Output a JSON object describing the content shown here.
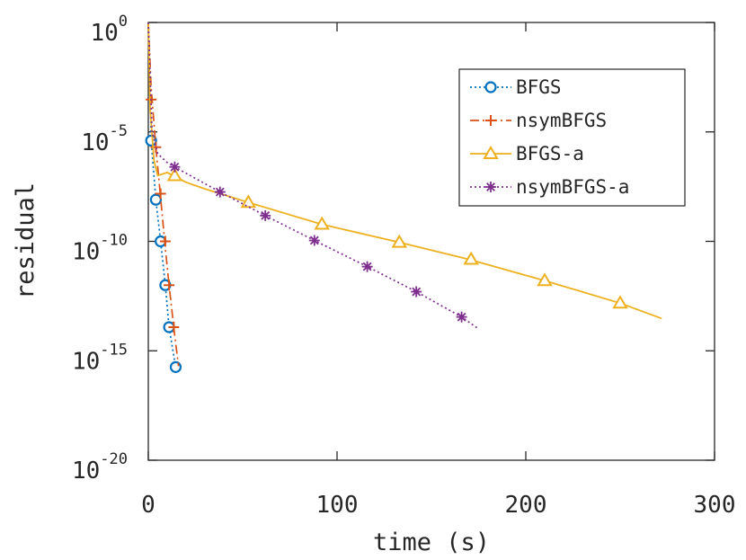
{
  "chart_data": {
    "type": "line",
    "xlabel": "time (s)",
    "ylabel": "residual",
    "xlim": [
      0,
      300
    ],
    "ylim": [
      1e-20,
      1
    ],
    "yscale": "log",
    "xticks": [
      {
        "value": 0,
        "label": "0"
      },
      {
        "value": 100,
        "label": "100"
      },
      {
        "value": 200,
        "label": "200"
      },
      {
        "value": 300,
        "label": "300"
      }
    ],
    "yticks": [
      {
        "value": 1,
        "base": "10",
        "exp": "0"
      },
      {
        "value": 1e-05,
        "base": "10",
        "exp": "-5"
      },
      {
        "value": 1e-10,
        "base": "10",
        "exp": "-10"
      },
      {
        "value": 1e-15,
        "base": "10",
        "exp": "-15"
      },
      {
        "value": 1e-20,
        "base": "10",
        "exp": "-20"
      }
    ],
    "grid": false,
    "legend_position": "top-right",
    "series": [
      {
        "name": "BFGS",
        "color": "#0072BD",
        "line_style": "dotted",
        "marker": "circle",
        "points": [
          [
            0,
            1
          ],
          [
            1.5,
            4e-06
          ],
          [
            4,
            8e-09
          ],
          [
            6.5,
            1e-10
          ],
          [
            9,
            1e-12
          ],
          [
            11,
            1.2e-14
          ],
          [
            14.5,
            1.8e-16
          ]
        ],
        "markers": [
          [
            1.5,
            4e-06
          ],
          [
            4,
            8e-09
          ],
          [
            6.5,
            1e-10
          ],
          [
            9,
            1e-12
          ],
          [
            11,
            1.2e-14
          ],
          [
            14.5,
            1.8e-16
          ]
        ]
      },
      {
        "name": "nsymBFGS",
        "color": "#D95319",
        "line_style": "dashdot",
        "marker": "plus",
        "points": [
          [
            0,
            1
          ],
          [
            1.5,
            0.001
          ],
          [
            4,
            2e-06
          ],
          [
            6.5,
            1e-08
          ],
          [
            9,
            5e-11
          ],
          [
            11,
            1e-12
          ],
          [
            14,
            5e-15
          ],
          [
            16,
            2e-16
          ]
        ],
        "markers": [
          [
            1.5,
            0.0003
          ],
          [
            4,
            2e-06
          ],
          [
            6.5,
            1.5e-08
          ],
          [
            9,
            1e-10
          ],
          [
            11,
            1e-12
          ],
          [
            13.5,
            1.2e-14
          ]
        ]
      },
      {
        "name": "BFGS-a",
        "color": "#EDB120",
        "line_style": "solid",
        "marker": "triangle",
        "points": [
          [
            0,
            1
          ],
          [
            1,
            0.0001
          ],
          [
            3,
            5e-07
          ],
          [
            5,
            1e-07
          ],
          [
            10,
            1.4e-07
          ],
          [
            20,
            5e-08
          ],
          [
            30,
            2.5e-08
          ],
          [
            53,
            6e-09
          ],
          [
            92,
            6e-10
          ],
          [
            133,
            9e-11
          ],
          [
            170,
            1.5e-11
          ],
          [
            210,
            1.6e-12
          ],
          [
            250,
            1.5e-13
          ],
          [
            272,
            3e-14
          ]
        ],
        "markers": [
          [
            14,
            1e-07
          ],
          [
            53,
            6e-09
          ],
          [
            92,
            6e-10
          ],
          [
            133,
            9e-11
          ],
          [
            171,
            1.5e-11
          ],
          [
            210,
            1.6e-12
          ],
          [
            250,
            1.5e-13
          ]
        ]
      },
      {
        "name": "nsymBFGS-a",
        "color": "#7E2F8E",
        "line_style": "dotted",
        "marker": "asterisk",
        "points": [
          [
            0,
            1
          ],
          [
            2,
            1e-05
          ],
          [
            5,
            1e-06
          ],
          [
            10,
            4e-07
          ],
          [
            14,
            2.5e-07
          ],
          [
            38,
            1.8e-08
          ],
          [
            62,
            1.5e-09
          ],
          [
            88,
            1.1e-10
          ],
          [
            116,
            7e-12
          ],
          [
            142,
            5e-13
          ],
          [
            166,
            3.5e-14
          ],
          [
            175,
            1e-14
          ]
        ],
        "markers": [
          [
            14,
            2.5e-07
          ],
          [
            38,
            1.8e-08
          ],
          [
            62,
            1.5e-09
          ],
          [
            88,
            1.1e-10
          ],
          [
            116,
            7e-12
          ],
          [
            142,
            5e-13
          ],
          [
            166,
            3.5e-14
          ]
        ]
      }
    ]
  }
}
